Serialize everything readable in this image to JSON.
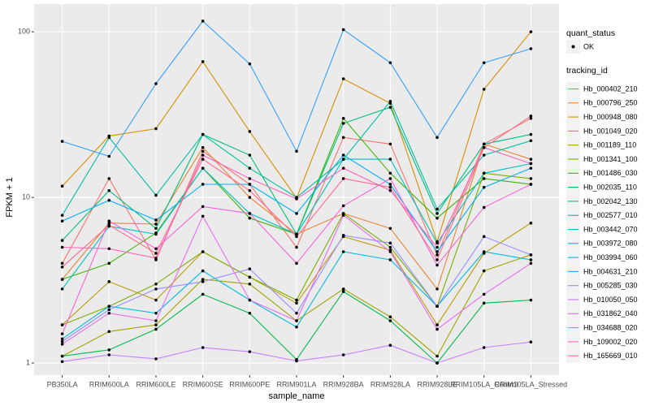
{
  "chart_data": {
    "type": "line",
    "x_label": "sample_name",
    "y_label": "FPKM + 1",
    "y_log": true,
    "grid": true,
    "categories": [
      "PB350LA",
      "RRIM600LA",
      "RRIM600LE",
      "RRIM600SE",
      "RRIM600PE",
      "RRIM901LA",
      "RRIM928BA",
      "RRIM928LA",
      "RRIM928LE",
      "RRIM105LA_Control",
      "RRIM105LA_Stressed"
    ],
    "ylim": [
      0.845,
      147
    ],
    "yticks": [
      1,
      10,
      100
    ],
    "shape_legend": {
      "title": "quant_status",
      "labels": [
        "OK"
      ]
    },
    "legend_title": "tracking_id",
    "series": [
      {
        "name": "Hb_000402_210",
        "color": "#F8766D",
        "values": [
          4.0,
          13,
          4.2,
          19,
          12,
          5,
          23,
          21,
          4.5,
          21,
          30
        ]
      },
      {
        "name": "Hb_000796_250",
        "color": "#EA8331",
        "values": [
          3.2,
          7,
          6.9,
          20,
          10,
          6,
          8,
          6.5,
          2.8,
          21,
          17
        ]
      },
      {
        "name": "Hb_000948_080",
        "color": "#D89000",
        "values": [
          11.7,
          23.5,
          26,
          66,
          25,
          9.9,
          52,
          37,
          5.4,
          45,
          100
        ]
      },
      {
        "name": "Hb_001049_020",
        "color": "#C09B00",
        "values": [
          1.7,
          3.1,
          2.4,
          4.7,
          3.3,
          2.3,
          5.8,
          4.8,
          1.7,
          4.6,
          7
        ]
      },
      {
        "name": "Hb_001189_110",
        "color": "#A3A500",
        "values": [
          1.1,
          1.55,
          1.7,
          3.2,
          3.0,
          1.8,
          2.8,
          1.9,
          1.1,
          3.6,
          4.5
        ]
      },
      {
        "name": "Hb_001341_100",
        "color": "#7CAE00",
        "values": [
          1.7,
          2.2,
          3.0,
          4.7,
          3.3,
          2.4,
          8,
          5.0,
          2.2,
          14,
          13
        ]
      },
      {
        "name": "Hb_001486_030",
        "color": "#39B600",
        "values": [
          3.2,
          4,
          6.1,
          15,
          7.5,
          6,
          30,
          14,
          7.5,
          13,
          12
        ]
      },
      {
        "name": "Hb_002035_110",
        "color": "#00BB4E",
        "values": [
          1.1,
          1.2,
          1.6,
          2.6,
          2.0,
          1.05,
          2.7,
          1.8,
          1.0,
          2.3,
          2.4
        ]
      },
      {
        "name": "Hb_002042_130",
        "color": "#00BF7D",
        "values": [
          5.5,
          11,
          6.5,
          24,
          18,
          6,
          28,
          35,
          8,
          21,
          24
        ]
      },
      {
        "name": "Hb_002577_010",
        "color": "#00C1A3",
        "values": [
          7.8,
          23,
          10.3,
          24,
          15,
          10,
          17,
          38,
          8.5,
          18,
          22
        ]
      },
      {
        "name": "Hb_003442_070",
        "color": "#00BFC4",
        "values": [
          2.8,
          6.7,
          6.0,
          15,
          8,
          6,
          17,
          17,
          5.3,
          14,
          16
        ]
      },
      {
        "name": "Hb_003972_080",
        "color": "#00BAE0",
        "values": [
          1.4,
          2.2,
          2.0,
          3.6,
          2.4,
          1.65,
          4.7,
          4.2,
          2.2,
          4.7,
          4.2
        ]
      },
      {
        "name": "Hb_003994_060",
        "color": "#00B0F6",
        "values": [
          7.2,
          9.6,
          7.3,
          12,
          12,
          8,
          18,
          12,
          4.7,
          11.5,
          15
        ]
      },
      {
        "name": "Hb_004631_210",
        "color": "#35A2FF",
        "values": [
          21.8,
          17.7,
          48.6,
          116,
          64,
          19,
          103,
          65,
          23,
          65,
          79
        ]
      },
      {
        "name": "Hb_005285_030",
        "color": "#9590FF",
        "values": [
          1.35,
          2.1,
          2.8,
          3.1,
          3.7,
          2.0,
          5.9,
          5.3,
          2.2,
          5.8,
          4.5
        ]
      },
      {
        "name": "Hb_010050_050",
        "color": "#C77CFF",
        "values": [
          1.02,
          1.12,
          1.06,
          1.24,
          1.17,
          1.03,
          1.12,
          1.28,
          1.0,
          1.24,
          1.34
        ]
      },
      {
        "name": "Hb_031862_040",
        "color": "#E76BF3",
        "values": [
          1.3,
          2.0,
          1.8,
          7.7,
          2.4,
          1.8,
          7.8,
          4.7,
          1.6,
          2.6,
          4.0
        ]
      },
      {
        "name": "Hb_034688_020",
        "color": "#FA62DB",
        "values": [
          1.5,
          7.2,
          4.9,
          8.8,
          8,
          4,
          8.9,
          13,
          3.9,
          8.7,
          12
        ]
      },
      {
        "name": "Hb_109002_020",
        "color": "#FF62BC",
        "values": [
          5,
          4.9,
          4.3,
          18,
          13,
          9.8,
          15,
          11,
          5,
          20,
          16
        ]
      },
      {
        "name": "Hb_165669_010",
        "color": "#FF6C91",
        "values": [
          3.8,
          6.8,
          4.6,
          17,
          11,
          5.8,
          13,
          11.5,
          4.2,
          20,
          31
        ]
      }
    ]
  }
}
